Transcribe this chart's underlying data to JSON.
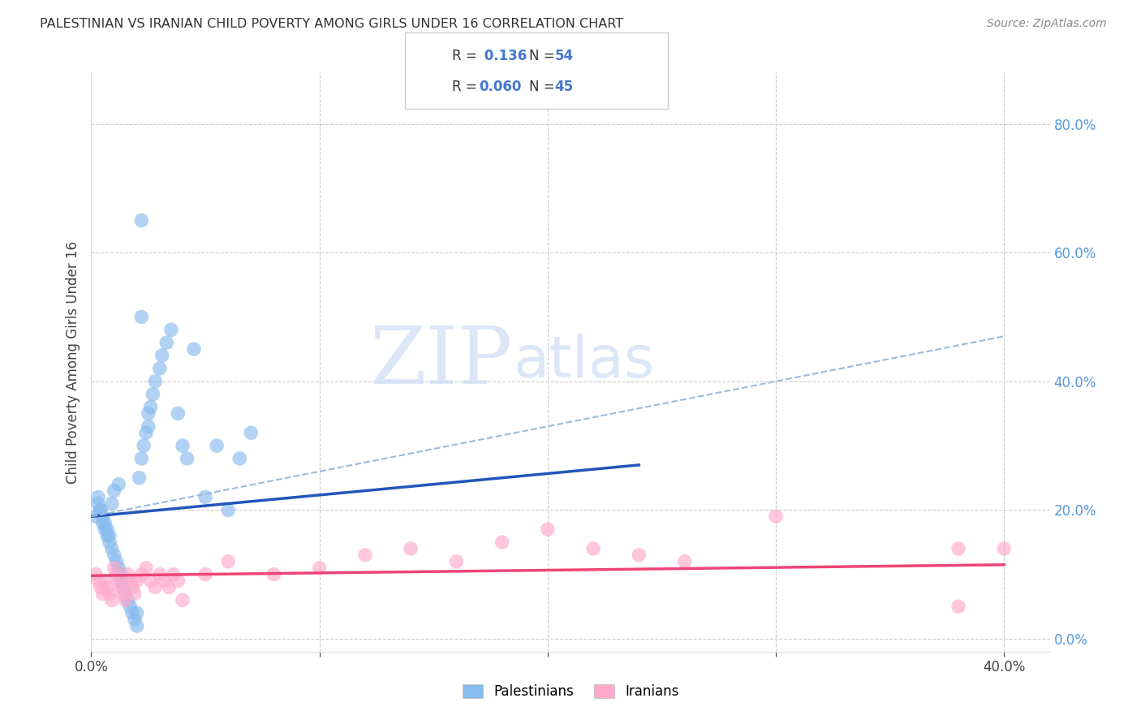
{
  "title": "PALESTINIAN VS IRANIAN CHILD POVERTY AMONG GIRLS UNDER 16 CORRELATION CHART",
  "source": "Source: ZipAtlas.com",
  "ylabel": "Child Poverty Among Girls Under 16",
  "xlim": [
    0.0,
    0.42
  ],
  "ylim": [
    -0.02,
    0.88
  ],
  "blue_color": "#88BBEE",
  "pink_color": "#FFAACC",
  "blue_line_color": "#2255BB",
  "pink_line_color": "#EE4477",
  "dashed_line_color": "#99BBDD",
  "label1": "Palestinians",
  "label2": "Iranians",
  "watermark_zip": "ZIP",
  "watermark_atlas": "atlas",
  "pal_x": [
    0.003,
    0.004,
    0.005,
    0.006,
    0.007,
    0.008,
    0.009,
    0.01,
    0.011,
    0.012,
    0.013,
    0.013,
    0.014,
    0.015,
    0.016,
    0.017,
    0.018,
    0.019,
    0.02,
    0.02,
    0.021,
    0.022,
    0.023,
    0.024,
    0.025,
    0.025,
    0.026,
    0.027,
    0.028,
    0.03,
    0.031,
    0.033,
    0.035,
    0.038,
    0.04,
    0.042,
    0.045,
    0.05,
    0.055,
    0.06,
    0.065,
    0.07,
    0.002,
    0.003,
    0.004,
    0.005,
    0.006,
    0.007,
    0.008,
    0.009,
    0.01,
    0.012,
    0.022,
    0.022
  ],
  "pal_y": [
    0.22,
    0.2,
    0.18,
    0.17,
    0.16,
    0.15,
    0.14,
    0.13,
    0.12,
    0.11,
    0.1,
    0.09,
    0.08,
    0.07,
    0.06,
    0.05,
    0.04,
    0.03,
    0.02,
    0.04,
    0.25,
    0.28,
    0.3,
    0.32,
    0.35,
    0.33,
    0.36,
    0.38,
    0.4,
    0.42,
    0.44,
    0.46,
    0.48,
    0.35,
    0.3,
    0.28,
    0.45,
    0.22,
    0.3,
    0.2,
    0.28,
    0.32,
    0.19,
    0.21,
    0.2,
    0.19,
    0.18,
    0.17,
    0.16,
    0.21,
    0.23,
    0.24,
    0.65,
    0.5
  ],
  "ira_x": [
    0.002,
    0.003,
    0.004,
    0.005,
    0.006,
    0.007,
    0.008,
    0.009,
    0.01,
    0.011,
    0.012,
    0.013,
    0.014,
    0.015,
    0.016,
    0.017,
    0.018,
    0.019,
    0.02,
    0.022,
    0.024,
    0.026,
    0.028,
    0.03,
    0.032,
    0.034,
    0.036,
    0.038,
    0.04,
    0.05,
    0.06,
    0.08,
    0.1,
    0.12,
    0.14,
    0.16,
    0.18,
    0.2,
    0.22,
    0.24,
    0.26,
    0.3,
    0.38,
    0.4,
    0.38
  ],
  "ira_y": [
    0.1,
    0.09,
    0.08,
    0.07,
    0.09,
    0.08,
    0.07,
    0.06,
    0.11,
    0.1,
    0.09,
    0.08,
    0.07,
    0.06,
    0.1,
    0.09,
    0.08,
    0.07,
    0.09,
    0.1,
    0.11,
    0.09,
    0.08,
    0.1,
    0.09,
    0.08,
    0.1,
    0.09,
    0.06,
    0.1,
    0.12,
    0.1,
    0.11,
    0.13,
    0.14,
    0.12,
    0.15,
    0.17,
    0.14,
    0.13,
    0.12,
    0.19,
    0.14,
    0.14,
    0.05
  ],
  "background_color": "#FFFFFF",
  "grid_color": "#CCCCCC",
  "blue_line_x0": 0.0,
  "blue_line_y0": 0.19,
  "blue_line_x1": 0.24,
  "blue_line_y1": 0.27,
  "dash_line_x0": 0.0,
  "dash_line_y0": 0.19,
  "dash_line_x1": 0.4,
  "dash_line_y1": 0.47,
  "pink_line_x0": 0.0,
  "pink_line_y0": 0.098,
  "pink_line_x1": 0.4,
  "pink_line_y1": 0.115
}
